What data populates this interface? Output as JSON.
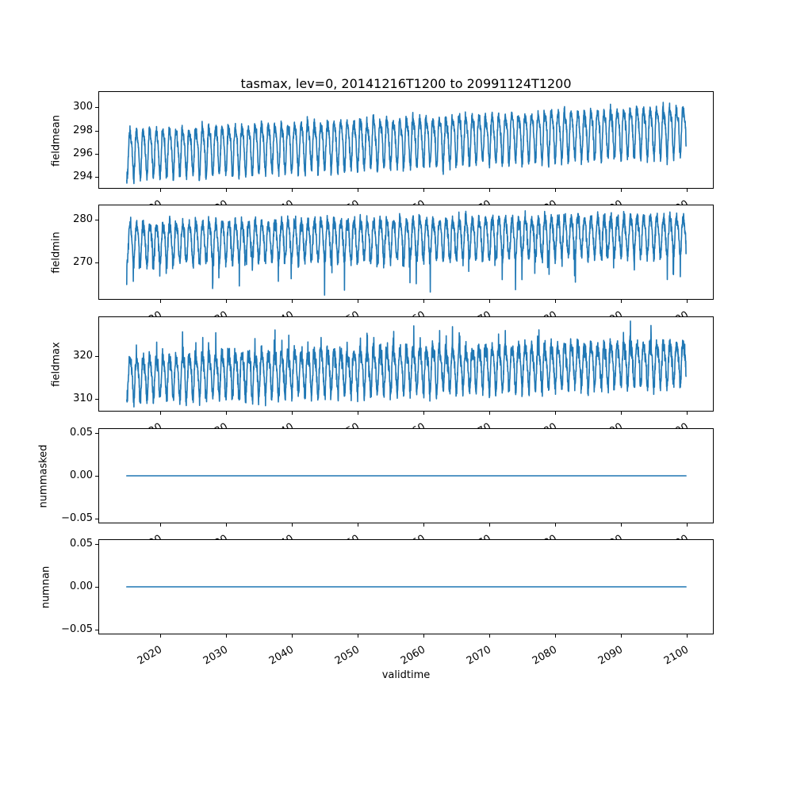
{
  "figure": {
    "title": "tasmax, lev=0, 20141216T1200 to 20991124T1200",
    "xlabel": "validtime",
    "background": "#ffffff",
    "line_color": "#1f77b4",
    "axis_color": "#000000"
  },
  "chart_data": {
    "type": "line",
    "title": "tasmax, lev=0, 20141216T1200 to 20991124T1200",
    "xlabel": "validtime",
    "legend": "none",
    "grid": false,
    "x_data_range": [
      2014.96,
      2099.9
    ],
    "xlim": [
      2010.65,
      2104.1
    ],
    "xticks": [
      {
        "v": 2020,
        "label": "2020"
      },
      {
        "v": 2030,
        "label": "2030"
      },
      {
        "v": 2040,
        "label": "2040"
      },
      {
        "v": 2050,
        "label": "2050"
      },
      {
        "v": 2060,
        "label": "2060"
      },
      {
        "v": 2070,
        "label": "2070"
      },
      {
        "v": 2080,
        "label": "2080"
      },
      {
        "v": 2090,
        "label": "2090"
      },
      {
        "v": 2100,
        "label": "2100"
      }
    ],
    "subplots": [
      {
        "ylabel": "fieldmean",
        "ylim": [
          293.0,
          301.4
        ],
        "yticks": [
          {
            "v": 300,
            "label": "300"
          },
          {
            "v": 298,
            "label": "298"
          },
          {
            "v": 296,
            "label": "296"
          },
          {
            "v": 294,
            "label": "294"
          }
        ],
        "series": {
          "name": "fieldmean",
          "model": "seasonal",
          "seed": 42,
          "samples_per_year": 40,
          "base_start": 296.15,
          "base_end": 298.2,
          "annual_amp": 1.9,
          "semiannual_amp": 0.45,
          "noise_sd": 0.27,
          "spike_prob": 0,
          "spike_min": 0,
          "spike_max": 0,
          "spike_dir": 0,
          "clip": [
            293.45,
            300.95
          ]
        }
      },
      {
        "ylabel": "fieldmin",
        "ylim": [
          261.3,
          283.5
        ],
        "yticks": [
          {
            "v": 280,
            "label": "280"
          },
          {
            "v": 270,
            "label": "270"
          }
        ],
        "series": {
          "name": "fieldmin",
          "model": "seasonal",
          "seed": 7,
          "samples_per_year": 40,
          "base_start": 274.8,
          "base_end": 276.6,
          "annual_amp": 4.4,
          "semiannual_amp": 0.7,
          "noise_sd": 0.85,
          "spike_prob": 0.05,
          "spike_min": 1.5,
          "spike_max": 7.5,
          "spike_dir": -1,
          "clip": [
            262.4,
            282.4
          ]
        }
      },
      {
        "ylabel": "fieldmax",
        "ylim": [
          307.0,
          329.3
        ],
        "yticks": [
          {
            "v": 320,
            "label": "320"
          },
          {
            "v": 310,
            "label": "310"
          }
        ],
        "series": {
          "name": "fieldmax",
          "model": "seasonal",
          "seed": 99,
          "samples_per_year": 40,
          "base_start": 315.4,
          "base_end": 318.9,
          "annual_amp": 4.6,
          "semiannual_amp": 1.2,
          "noise_sd": 1.0,
          "spike_prob": 0.06,
          "spike_min": 1.0,
          "spike_max": 5.0,
          "spike_dir": 1,
          "clip": [
            308.1,
            328.2
          ]
        }
      },
      {
        "ylabel": "nummasked",
        "ylim": [
          -0.056,
          0.056
        ],
        "yticks": [
          {
            "v": 0.05,
            "label": "0.05"
          },
          {
            "v": 0.0,
            "label": "0.00"
          },
          {
            "v": -0.05,
            "label": "−0.05"
          }
        ],
        "series": {
          "name": "nummasked",
          "model": "constant",
          "value": 0.0
        }
      },
      {
        "ylabel": "numnan",
        "ylim": [
          -0.056,
          0.056
        ],
        "yticks": [
          {
            "v": 0.05,
            "label": "0.05"
          },
          {
            "v": 0.0,
            "label": "0.00"
          },
          {
            "v": -0.05,
            "label": "−0.05"
          }
        ],
        "series": {
          "name": "numnan",
          "model": "constant",
          "value": 0.0
        }
      }
    ]
  }
}
